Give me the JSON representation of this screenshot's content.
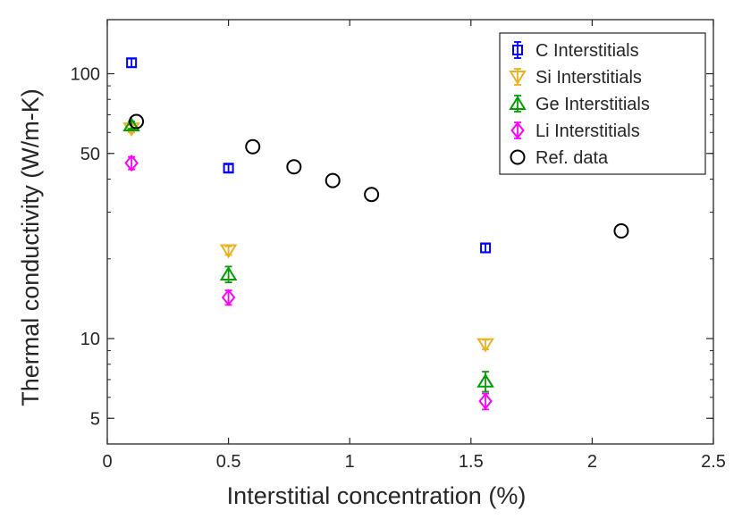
{
  "chart_data": {
    "type": "scatter",
    "xlabel": "Interstitial concentration (%)",
    "ylabel": "Thermal conductivity (W/m-K)",
    "x_scale": "linear",
    "y_scale": "log",
    "xlim": [
      0,
      2.5
    ],
    "ylim": [
      4,
      160
    ],
    "x_ticks": [
      0,
      0.5,
      1,
      1.5,
      2,
      2.5
    ],
    "x_tick_labels": [
      "0",
      "0.5",
      "1",
      "1.5",
      "2",
      "2.5"
    ],
    "y_ticks": [
      5,
      10,
      50,
      100
    ],
    "y_tick_labels": [
      "5",
      "10",
      "50",
      "100"
    ],
    "legend_position": "top-right",
    "series": [
      {
        "name": "C Interstitials",
        "marker": "square",
        "color": "#0000FF",
        "x": [
          0.1,
          0.5,
          1.56
        ],
        "y": [
          110,
          44,
          22
        ],
        "error": [
          4,
          1.5,
          0.8
        ]
      },
      {
        "name": "Si Interstitials",
        "marker": "triangle-down",
        "color": "#EDB120",
        "x": [
          0.1,
          0.5,
          1.56
        ],
        "y": [
          62,
          21.5,
          9.5
        ],
        "error": [
          2,
          0.8,
          0.4
        ]
      },
      {
        "name": "Ge Interstitials",
        "marker": "triangle-up",
        "color": "#00A000",
        "x": [
          0.1,
          0.5,
          1.56
        ],
        "y": [
          64,
          17.5,
          6.9
        ],
        "error": [
          2,
          1.2,
          0.6
        ]
      },
      {
        "name": "Li Interstitials",
        "marker": "diamond",
        "color": "#FF00FF",
        "x": [
          0.1,
          0.5,
          1.56
        ],
        "y": [
          46,
          14.3,
          5.8
        ],
        "error": [
          2.5,
          0.9,
          0.4
        ]
      },
      {
        "name": "Ref. data",
        "marker": "circle",
        "color": "#000000",
        "x": [
          0.12,
          0.6,
          0.77,
          0.93,
          1.09,
          2.12
        ],
        "y": [
          66,
          53,
          44.5,
          39.5,
          35,
          25.5
        ],
        "error": null
      }
    ]
  }
}
